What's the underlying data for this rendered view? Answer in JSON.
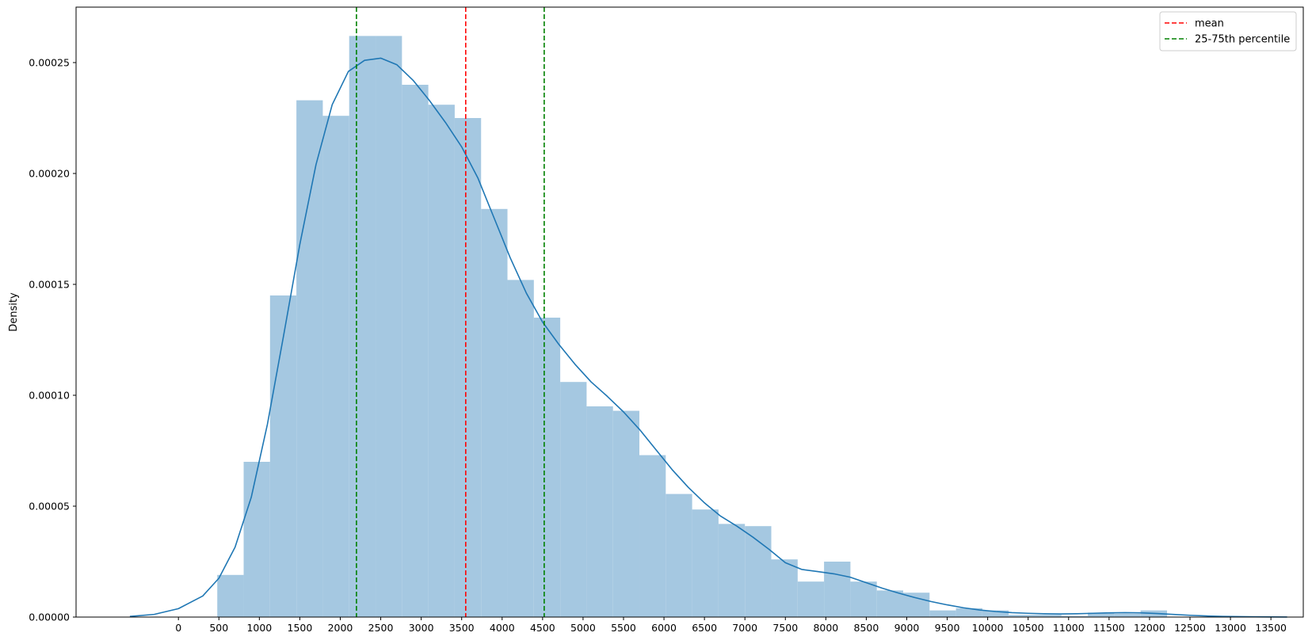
{
  "chart_data": {
    "type": "histogram",
    "title": "",
    "xlabel": "",
    "ylabel": "Density",
    "xlim": [
      -1265,
      13900
    ],
    "ylim": [
      0,
      0.000275
    ],
    "grid": false,
    "legend_position": "top-right",
    "x_ticks": [
      0,
      500,
      1000,
      1500,
      2000,
      2500,
      3000,
      3500,
      4000,
      4500,
      5000,
      5500,
      6000,
      6500,
      7000,
      7500,
      8000,
      8500,
      9000,
      9500,
      10000,
      10500,
      11000,
      11500,
      12000,
      12500,
      13000,
      13500
    ],
    "y_ticks": [
      0.0,
      5e-05,
      0.0001,
      0.00015,
      0.0002,
      0.00025
    ],
    "y_tick_labels": [
      "0.00000",
      "0.00005",
      "0.00010",
      "0.00015",
      "0.00020",
      "0.00025"
    ],
    "histogram": {
      "color": "#a5c8e1",
      "bin_edges": [
        480,
        806,
        1132,
        1458,
        1784,
        2110,
        2436,
        2762,
        3088,
        3414,
        3740,
        4066,
        4392,
        4718,
        5044,
        5370,
        5696,
        6022,
        6348,
        6674,
        7000,
        7326,
        7652,
        7978,
        8304,
        8630,
        8956,
        9282,
        9608,
        9934,
        10260,
        10586,
        10912,
        11238,
        11564,
        11890,
        12216
      ],
      "densities": [
        1.9e-05,
        7e-05,
        0.000145,
        0.000233,
        0.000226,
        0.000262,
        0.000262,
        0.00024,
        0.000231,
        0.000225,
        0.000184,
        0.000152,
        0.000135,
        0.000106,
        9.5e-05,
        9.3e-05,
        7.3e-05,
        5.55e-05,
        4.85e-05,
        4.2e-05,
        4.1e-05,
        2.6e-05,
        1.6e-05,
        2.5e-05,
        1.6e-05,
        1.2e-05,
        1.1e-05,
        3e-06,
        4e-06,
        3e-06,
        1e-06,
        1e-06,
        5e-07,
        2e-06,
        1.5e-06,
        3e-06
      ]
    },
    "kde": {
      "color": "#1f77b4",
      "x": [
        -600,
        -300,
        0,
        300,
        500,
        700,
        900,
        1100,
        1300,
        1500,
        1700,
        1900,
        2100,
        2300,
        2500,
        2700,
        2900,
        3100,
        3300,
        3500,
        3700,
        3900,
        4100,
        4300,
        4500,
        4700,
        4900,
        5100,
        5300,
        5500,
        5700,
        5900,
        6100,
        6300,
        6500,
        6700,
        6900,
        7100,
        7300,
        7500,
        7700,
        7900,
        8100,
        8300,
        8500,
        8700,
        8900,
        9100,
        9300,
        9500,
        9700,
        9900,
        10100,
        10300,
        10500,
        10700,
        10900,
        11100,
        11300,
        11500,
        11700,
        11900,
        12100,
        12300,
        12500,
        12700,
        12900,
        13100,
        13300,
        13500,
        13700
      ],
      "y": [
        3e-07,
        1.2e-06,
        3.8e-06,
        9.5e-06,
        1.75e-05,
        3.15e-05,
        5.4e-05,
        8.7e-05,
        0.000127,
        0.000168,
        0.000204,
        0.000231,
        0.000246,
        0.000251,
        0.000252,
        0.000249,
        0.000242,
        0.000233,
        0.000223,
        0.000212,
        0.000198,
        0.00018,
        0.000162,
        0.000146,
        0.000133,
        0.000123,
        0.000114,
        0.000106,
        9.95e-05,
        9.25e-05,
        8.45e-05,
        7.55e-05,
        6.65e-05,
        5.85e-05,
        5.15e-05,
        4.55e-05,
        4.1e-05,
        3.6e-05,
        3.05e-05,
        2.45e-05,
        2.15e-05,
        2.05e-05,
        1.95e-05,
        1.8e-05,
        1.55e-05,
        1.3e-05,
        1.08e-05,
        8.8e-06,
        7e-06,
        5.5e-06,
        4.2e-06,
        3.2e-06,
        2.5e-06,
        2e-06,
        1.7e-06,
        1.5e-06,
        1.4e-06,
        1.5e-06,
        1.7e-06,
        1.9e-06,
        2e-06,
        1.9e-06,
        1.6e-06,
        1.2e-06,
        8e-07,
        5e-07,
        3e-07,
        2e-07,
        1e-07,
        5e-08,
        2e-08
      ]
    },
    "vlines": [
      {
        "name": "mean",
        "x": 3550,
        "color": "#ff0000",
        "dash": "dashed"
      },
      {
        "name": "25-75th percentile",
        "x": 2200,
        "color": "#008000",
        "dash": "dashed"
      },
      {
        "name": "25-75th percentile",
        "x": 4520,
        "color": "#008000",
        "dash": "dashed"
      }
    ],
    "legend": [
      {
        "label": "mean",
        "color": "#ff0000"
      },
      {
        "label": "25-75th percentile",
        "color": "#008000"
      }
    ]
  }
}
